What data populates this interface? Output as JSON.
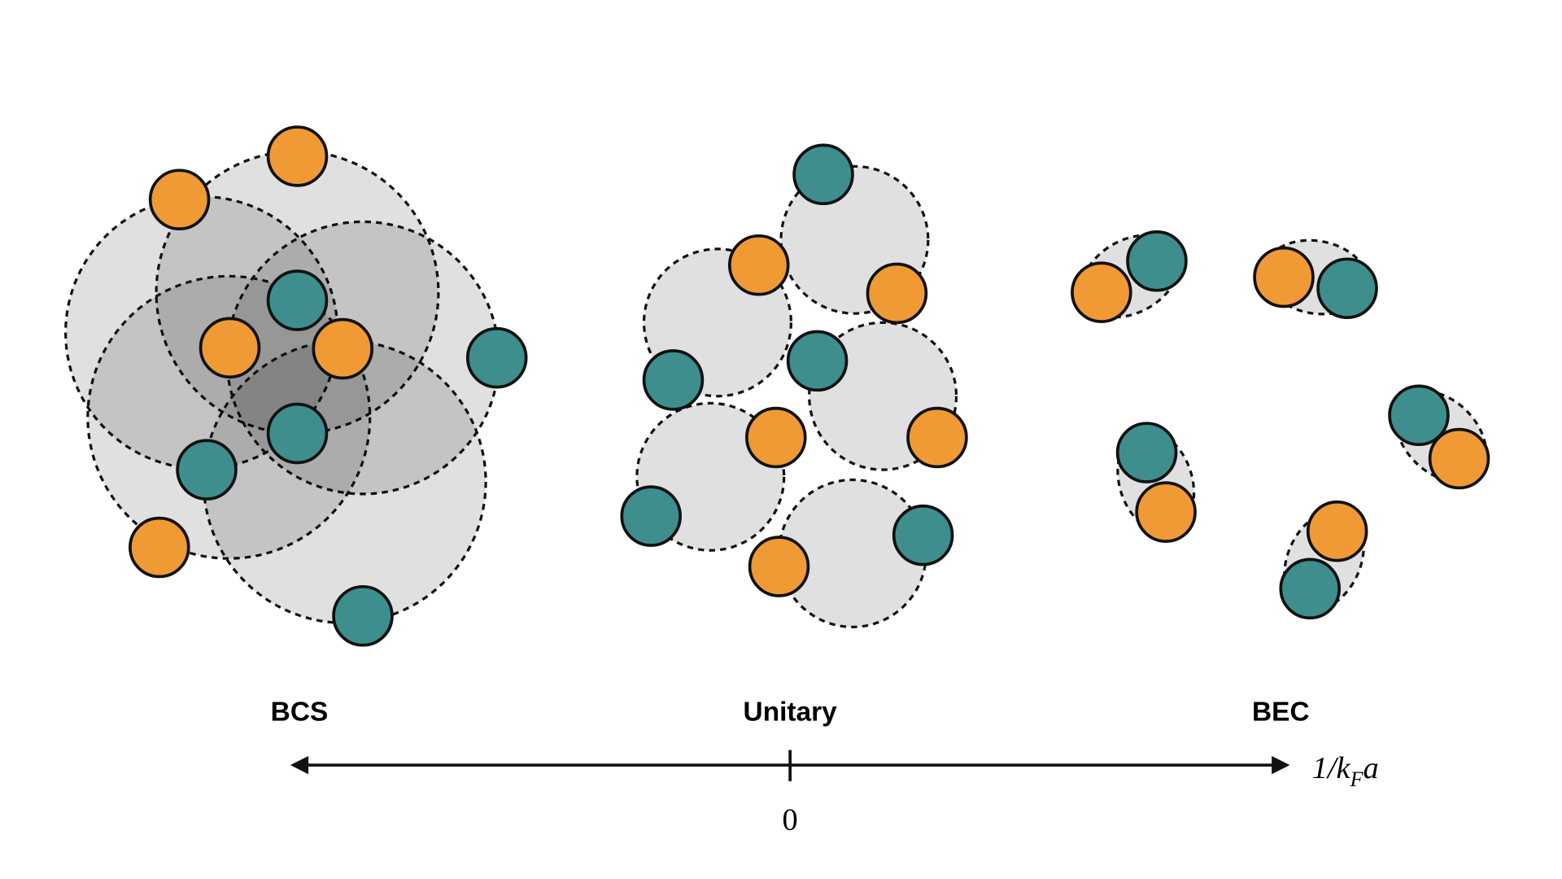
{
  "labels": {
    "bcs": "BCS",
    "unitary": "Unitary",
    "bec": "BEC"
  },
  "axis": {
    "zero": "0",
    "label_prefix": "1/k",
    "label_subscript": "F",
    "label_suffix": "a"
  }
}
